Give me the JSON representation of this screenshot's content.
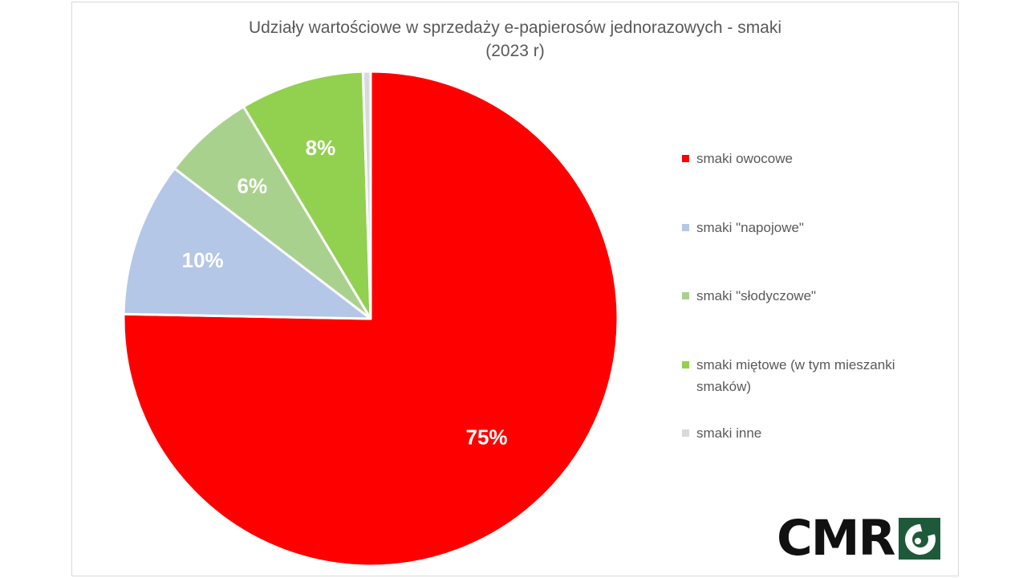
{
  "chart_data": {
    "type": "pie",
    "title": "Udziały wartościowe w sprzedaży e-papierosów jednorazowych - smaki",
    "subtitle": "(2023 r)",
    "categories": [
      "smaki owocowe",
      "smaki \"napojowe\"",
      "smaki \"słodyczowe\"",
      "smaki miętowe (w tym mieszanki smaków)",
      "smaki inne"
    ],
    "values": [
      75.3,
      10.1,
      6.0,
      8.1,
      0.5
    ],
    "data_labels": [
      "75%",
      "10%",
      "6%",
      "8%",
      ""
    ],
    "colors": [
      "#ff0000",
      "#b4c7e7",
      "#a9d18e",
      "#92d050",
      "#d9d9d9"
    ],
    "start_angle_deg": 0,
    "direction": "clockwise",
    "legend_position": "right"
  },
  "title": {
    "line1": "Udziały wartościowe w sprzedaży e-papierosów jednorazowych - smaki",
    "line2": "(2023 r)"
  },
  "legend": {
    "items": [
      {
        "label": "smaki owocowe",
        "color": "#ff0000"
      },
      {
        "label": "smaki \"napojowe\"",
        "color": "#b4c7e7"
      },
      {
        "label": "smaki \"słodyczowe\"",
        "color": "#a9d18e"
      },
      {
        "label": "smaki miętowe (w tym mieszanki smaków)",
        "color": "#92d050"
      },
      {
        "label": "smaki inne",
        "color": "#d9d9d9"
      }
    ]
  },
  "logo": {
    "text": "CMR",
    "mark_color": "#1e5a3a"
  }
}
